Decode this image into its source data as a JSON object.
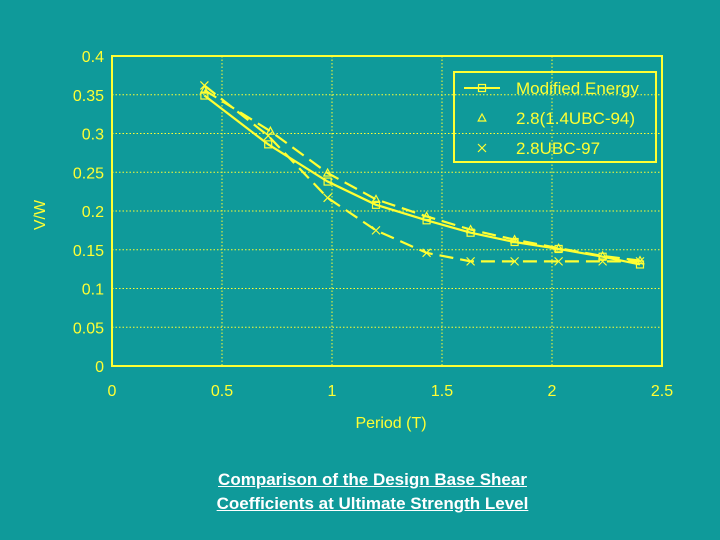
{
  "colors": {
    "background": "#0f9a9a",
    "chart": "#ffff33",
    "caption": "#ffffff"
  },
  "caption": {
    "line1": "Comparison of the Design Base Shear",
    "line2": "Coefficients at Ultimate Strength Level"
  },
  "chart_data": {
    "type": "line",
    "xlabel": "Period (T)",
    "ylabel": "V/W",
    "xlim": [
      0,
      2.5
    ],
    "ylim": [
      0,
      0.4
    ],
    "xticks": [
      "0",
      "0.5",
      "1",
      "1.5",
      "2",
      "2.5"
    ],
    "xtick_values": [
      0,
      0.5,
      1,
      1.5,
      2,
      2.5
    ],
    "yticks": [
      "0",
      "0.05",
      "0.1",
      "0.15",
      "0.2",
      "0.25",
      "0.3",
      "0.35",
      "0.4"
    ],
    "ytick_values": [
      0,
      0.05,
      0.1,
      0.15,
      0.2,
      0.25,
      0.3,
      0.35,
      0.4
    ],
    "grid": true,
    "legend_position": "top-right",
    "series": [
      {
        "name": "Modified Energy",
        "marker": "square",
        "line": "solid",
        "x": [
          0.42,
          0.71,
          0.98,
          1.2,
          1.43,
          1.63,
          1.83,
          2.03,
          2.23,
          2.4
        ],
        "y": [
          0.349,
          0.286,
          0.238,
          0.208,
          0.188,
          0.172,
          0.16,
          0.151,
          0.141,
          0.131
        ]
      },
      {
        "name": "2.8(1.4UBC-94)",
        "marker": "triangle",
        "line": "dashed",
        "x": [
          0.42,
          0.72,
          0.98,
          1.2,
          1.43,
          1.63,
          1.83,
          2.03,
          2.23,
          2.4
        ],
        "y": [
          0.356,
          0.303,
          0.249,
          0.215,
          0.193,
          0.176,
          0.163,
          0.152,
          0.142,
          0.136
        ]
      },
      {
        "name": "2.8UBC-97",
        "marker": "x",
        "line": "dashed",
        "x": [
          0.42,
          0.71,
          0.98,
          1.2,
          1.43,
          1.63,
          1.83,
          2.03,
          2.23,
          2.4
        ],
        "y": [
          0.362,
          0.297,
          0.217,
          0.175,
          0.146,
          0.135,
          0.135,
          0.135,
          0.135,
          0.135
        ]
      }
    ]
  }
}
